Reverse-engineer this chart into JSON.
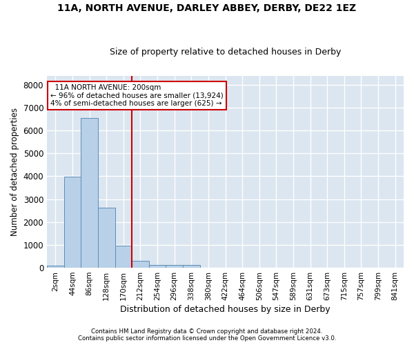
{
  "title": "11A, NORTH AVENUE, DARLEY ABBEY, DERBY, DE22 1EZ",
  "subtitle": "Size of property relative to detached houses in Derby",
  "xlabel": "Distribution of detached houses by size in Derby",
  "ylabel": "Number of detached properties",
  "bar_color": "#b8d0e8",
  "bar_edge_color": "#5b8db8",
  "categories": [
    "2sqm",
    "44sqm",
    "86sqm",
    "128sqm",
    "170sqm",
    "212sqm",
    "254sqm",
    "296sqm",
    "338sqm",
    "380sqm",
    "422sqm",
    "464sqm",
    "506sqm",
    "547sqm",
    "589sqm",
    "631sqm",
    "673sqm",
    "715sqm",
    "757sqm",
    "799sqm",
    "841sqm"
  ],
  "values": [
    80,
    3980,
    6560,
    2620,
    960,
    310,
    130,
    120,
    110,
    0,
    0,
    0,
    0,
    0,
    0,
    0,
    0,
    0,
    0,
    0,
    0
  ],
  "ylim": [
    0,
    8400
  ],
  "yticks": [
    0,
    1000,
    2000,
    3000,
    4000,
    5000,
    6000,
    7000,
    8000
  ],
  "property_bar_index": 4,
  "annotation_line1": "  11A NORTH AVENUE: 200sqm",
  "annotation_line2": "← 96% of detached houses are smaller (13,924)",
  "annotation_line3": "4% of semi-detached houses are larger (625) →",
  "annotation_box_color": "#ffffff",
  "annotation_box_edge": "#cc0000",
  "vline_color": "#cc0000",
  "bg_color": "#dce6f0",
  "grid_color": "#ffffff",
  "fig_bg": "#ffffff",
  "footer1": "Contains HM Land Registry data © Crown copyright and database right 2024.",
  "footer2": "Contains public sector information licensed under the Open Government Licence v3.0."
}
